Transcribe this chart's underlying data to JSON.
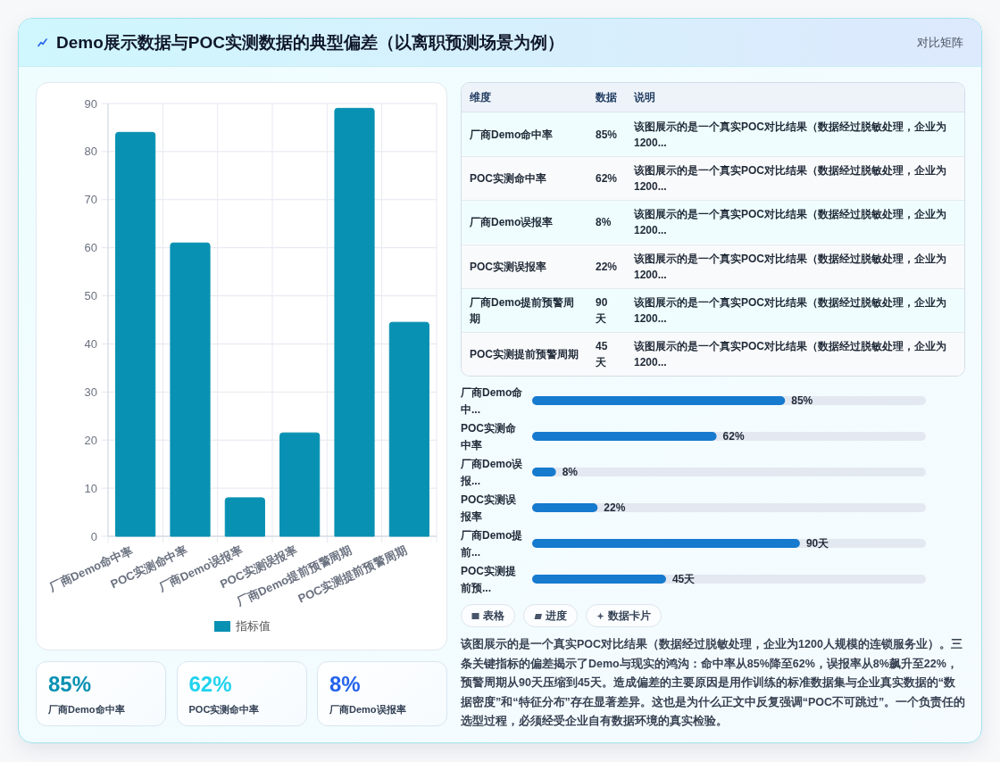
{
  "chart_data": [
    {
      "type": "other",
      "title": "Demo展示数据与POC实测数据的典型偏差（以离职预测场景为例）",
      "subtitle": "对比矩阵"
    },
    {
      "type": "bar",
      "categories": [
        "厂商Demo命中率",
        "POC实测命中率",
        "厂商Demo误报率",
        "POC实测误报率",
        "厂商Demo提前预警周期",
        "POC实测提前预警周期"
      ],
      "series": [
        {
          "name": "指标值",
          "color": "#0891b2",
          "values": [
            84,
            61,
            8,
            21.5,
            89,
            44.5
          ]
        }
      ],
      "ylim": [
        0,
        90
      ],
      "yticks": [
        0,
        10,
        20,
        30,
        40,
        50,
        60,
        70,
        80,
        90
      ],
      "grid": true,
      "legend": "bottom"
    },
    {
      "type": "other",
      "categories": [
        "厂商Demo命中率",
        "POC实测命中率",
        "厂商Demo误报率",
        "POC实测误报率",
        "厂商Demo提前预警周期",
        "POC实测提前预警周期"
      ],
      "value_labels": [
        "85%",
        "62%",
        "8%",
        "22%",
        "90天",
        "45天"
      ],
      "annotations": [
        "维度",
        "数据",
        "说明",
        "该图展示的是一个真实POC对比结果（数据经过脱敏处理，企业为1200...",
        "该图展示的是一个真实POC对比结果（数据经过脱敏处理，企业为1200...",
        "该图展示的是一个真实POC对比结果（数据经过脱敏处理，企业为1200...",
        "该图展示的是一个真实POC对比结果（数据经过脱敏处理，企业为1200...",
        "该图展示的是一个真实POC对比结果（数据经过脱敏处理，企业为1200...",
        "该图展示的是一个真实POC对比结果（数据经过脱敏处理，企业为1200..."
      ]
    },
    {
      "type": "bar",
      "orientation": "horizontal",
      "categories": [
        "厂商Demo命中...",
        "POC实测命中率",
        "厂商Demo误报...",
        "POC实测误报率",
        "厂商Demo提前...",
        "POC实测提前预..."
      ],
      "series": [
        {
          "color": "#167ace",
          "values": [
            85,
            62,
            8,
            22,
            90,
            45
          ],
          "value_labels": [
            "85%",
            "62%",
            "8%",
            "22%",
            "90天",
            "45天"
          ]
        }
      ],
      "tick_labels": "y"
    },
    {
      "type": "other",
      "categories": [
        "表格",
        "进度",
        "数据卡片"
      ]
    },
    {
      "type": "other",
      "categories": [
        "厂商Demo命中率",
        "POC实测命中率",
        "厂商Demo误报率"
      ],
      "value_labels": [
        "85%",
        "62%",
        "8%"
      ]
    },
    {
      "type": "other",
      "annotations": [
        "该图展示的是一个真实POC对比结果（数据经过脱敏处理，企业为1200人规模的连锁服务业）。三条关键指标的偏差揭示了Demo与现实的鸿沟：命中率从85%降至62%，误报率从8%飙升至22%，预警周期从90天压缩到45天。造成偏差的主要原因是用作训练的标准数据集与企业真实数据的“数据密度”和“特征分布”存在显著差异。这也是为什么正文中反复强调“POC不可跳过”。一个负责任的选型过程，必须经受企业自有数据环境的真实检验。"
      ]
    }
  ]
}
